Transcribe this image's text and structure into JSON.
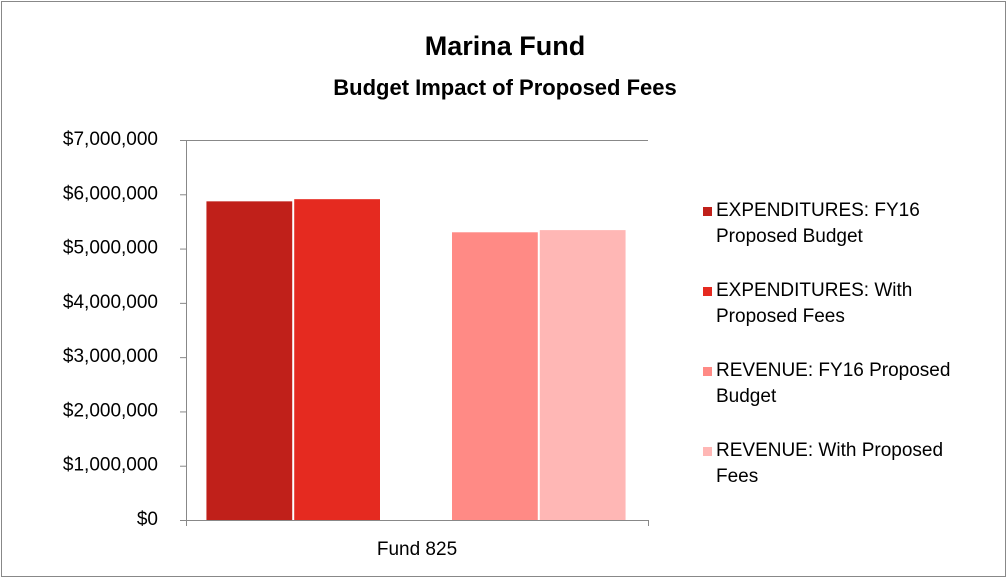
{
  "chart_data": {
    "type": "bar",
    "title": "Marina Fund",
    "subtitle": "Budget Impact of Proposed Fees",
    "categories": [
      "Fund 825"
    ],
    "series": [
      {
        "name": "EXPENDITURES: FY16 Proposed Budget",
        "color": "#c0201a",
        "values": [
          5870000
        ]
      },
      {
        "name": "EXPENDITURES: With Proposed Fees",
        "color": "#e52a20",
        "values": [
          5910000
        ]
      },
      {
        "name": "REVENUE: FY16 Proposed Budget",
        "color": "#ff8a85",
        "values": [
          5300000
        ]
      },
      {
        "name": "REVENUE: With Proposed Fees",
        "color": "#ffb7b5",
        "values": [
          5340000
        ]
      }
    ],
    "ylim": [
      0,
      7000000
    ],
    "yticks": [
      {
        "value": 0,
        "label": "$0"
      },
      {
        "value": 1000000,
        "label": "$1,000,000"
      },
      {
        "value": 2000000,
        "label": "$2,000,000"
      },
      {
        "value": 3000000,
        "label": "$3,000,000"
      },
      {
        "value": 4000000,
        "label": "$4,000,000"
      },
      {
        "value": 5000000,
        "label": "$5,000,000"
      },
      {
        "value": 6000000,
        "label": "$6,000,000"
      },
      {
        "value": 7000000,
        "label": "$7,000,000"
      }
    ],
    "grid": false,
    "legend": "right"
  }
}
